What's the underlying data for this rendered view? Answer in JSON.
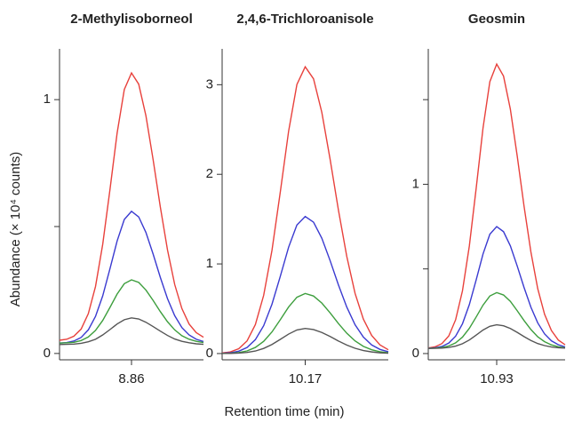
{
  "xlabel": "Retention time (min)",
  "ylabel": "Abundance (× 10⁴ counts)",
  "chart_data": [
    {
      "type": "line",
      "title": "2-Methylisoborneol",
      "x": [
        8.81,
        8.815,
        8.82,
        8.825,
        8.83,
        8.835,
        8.84,
        8.845,
        8.85,
        8.855,
        8.86,
        8.865,
        8.87,
        8.875,
        8.88,
        8.885,
        8.89,
        8.895,
        8.9,
        8.905,
        8.91
      ],
      "xlim": [
        8.81,
        8.91
      ],
      "xticks": [
        8.86
      ],
      "ylim": [
        -0.025,
        1.2
      ],
      "yticks": [
        0,
        1
      ],
      "minor_yticks": [
        0.5
      ],
      "series": [
        {
          "color": "#e8413c",
          "values": [
            0.052,
            0.056,
            0.068,
            0.096,
            0.157,
            0.264,
            0.43,
            0.644,
            0.868,
            1.04,
            1.105,
            1.061,
            0.937,
            0.764,
            0.578,
            0.408,
            0.272,
            0.177,
            0.116,
            0.082,
            0.064
          ]
        },
        {
          "color": "#3a3ad0",
          "values": [
            0.041,
            0.043,
            0.049,
            0.063,
            0.093,
            0.146,
            0.227,
            0.333,
            0.443,
            0.528,
            0.56,
            0.538,
            0.477,
            0.392,
            0.3,
            0.216,
            0.149,
            0.102,
            0.073,
            0.056,
            0.047
          ]
        },
        {
          "color": "#3d9e3d",
          "values": [
            0.041,
            0.042,
            0.044,
            0.051,
            0.065,
            0.091,
            0.13,
            0.181,
            0.234,
            0.275,
            0.29,
            0.28,
            0.25,
            0.209,
            0.165,
            0.125,
            0.093,
            0.07,
            0.056,
            0.048,
            0.043
          ]
        },
        {
          "color": "#555555",
          "values": [
            0.035,
            0.036,
            0.037,
            0.04,
            0.046,
            0.056,
            0.073,
            0.094,
            0.116,
            0.133,
            0.14,
            0.136,
            0.123,
            0.106,
            0.088,
            0.071,
            0.057,
            0.048,
            0.042,
            0.038,
            0.036
          ]
        }
      ]
    },
    {
      "type": "line",
      "title": "2,4,6-Trichloroanisole",
      "x": [
        10.12,
        10.125,
        10.13,
        10.135,
        10.14,
        10.145,
        10.15,
        10.155,
        10.16,
        10.165,
        10.17,
        10.175,
        10.18,
        10.185,
        10.19,
        10.195,
        10.2,
        10.205,
        10.21,
        10.215,
        10.22
      ],
      "xlim": [
        10.12,
        10.22
      ],
      "xticks": [
        10.17
      ],
      "ylim": [
        -0.07,
        3.4
      ],
      "yticks": [
        0,
        1,
        2,
        3
      ],
      "series": [
        {
          "color": "#e8413c",
          "values": [
            0.006,
            0.019,
            0.054,
            0.141,
            0.323,
            0.65,
            1.152,
            1.802,
            2.48,
            3.002,
            3.2,
            3.066,
            2.691,
            2.166,
            1.6,
            1.085,
            0.672,
            0.384,
            0.202,
            0.096,
            0.042
          ]
        },
        {
          "color": "#3a3ad0",
          "values": [
            0.003,
            0.009,
            0.026,
            0.067,
            0.155,
            0.311,
            0.551,
            0.861,
            1.186,
            1.435,
            1.53,
            1.466,
            1.287,
            1.036,
            0.765,
            0.519,
            0.321,
            0.184,
            0.096,
            0.046,
            0.02
          ]
        },
        {
          "color": "#3d9e3d",
          "values": [
            0.001,
            0.004,
            0.011,
            0.029,
            0.068,
            0.136,
            0.241,
            0.377,
            0.519,
            0.628,
            0.67,
            0.642,
            0.563,
            0.454,
            0.335,
            0.227,
            0.141,
            0.08,
            0.042,
            0.02,
            0.009
          ]
        },
        {
          "color": "#555555",
          "values": [
            0.001,
            0.002,
            0.005,
            0.012,
            0.028,
            0.057,
            0.101,
            0.158,
            0.217,
            0.263,
            0.28,
            0.268,
            0.235,
            0.19,
            0.14,
            0.095,
            0.059,
            0.034,
            0.018,
            0.008,
            0.004
          ]
        }
      ]
    },
    {
      "type": "line",
      "title": "Geosmin",
      "x": [
        10.88,
        10.885,
        10.89,
        10.895,
        10.9,
        10.905,
        10.91,
        10.915,
        10.92,
        10.925,
        10.93,
        10.935,
        10.94,
        10.945,
        10.95,
        10.955,
        10.96,
        10.965,
        10.97,
        10.975,
        10.98
      ],
      "xlim": [
        10.88,
        10.98
      ],
      "xticks": [
        10.93
      ],
      "ylim": [
        -0.037,
        1.8
      ],
      "yticks": [
        0,
        1
      ],
      "minor_yticks": [
        0.5,
        1.5
      ],
      "series": [
        {
          "color": "#e8413c",
          "values": [
            0.033,
            0.04,
            0.059,
            0.104,
            0.2,
            0.371,
            0.635,
            0.976,
            1.332,
            1.606,
            1.71,
            1.639,
            1.443,
            1.167,
            0.87,
            0.6,
            0.383,
            0.232,
            0.136,
            0.08,
            0.052
          ]
        },
        {
          "color": "#3a3ad0",
          "values": [
            0.031,
            0.034,
            0.042,
            0.062,
            0.103,
            0.176,
            0.289,
            0.435,
            0.588,
            0.705,
            0.75,
            0.72,
            0.636,
            0.517,
            0.39,
            0.274,
            0.181,
            0.116,
            0.075,
            0.052,
            0.039
          ]
        },
        {
          "color": "#3d9e3d",
          "values": [
            0.031,
            0.032,
            0.036,
            0.045,
            0.063,
            0.097,
            0.149,
            0.216,
            0.286,
            0.34,
            0.36,
            0.346,
            0.308,
            0.253,
            0.195,
            0.142,
            0.099,
            0.07,
            0.051,
            0.04,
            0.034
          ]
        },
        {
          "color": "#555555",
          "values": [
            0.03,
            0.031,
            0.032,
            0.036,
            0.044,
            0.058,
            0.08,
            0.109,
            0.139,
            0.161,
            0.17,
            0.164,
            0.148,
            0.125,
            0.1,
            0.077,
            0.059,
            0.047,
            0.039,
            0.034,
            0.032
          ]
        }
      ]
    }
  ]
}
